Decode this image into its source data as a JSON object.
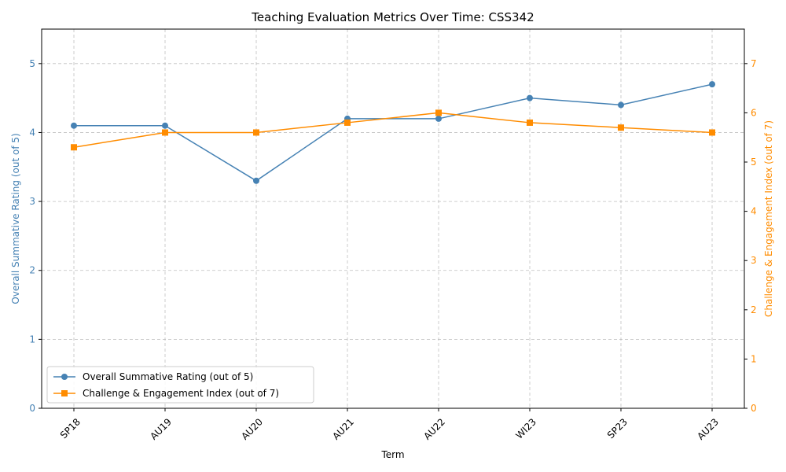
{
  "chart_data": {
    "type": "line",
    "title": "Teaching Evaluation Metrics Over Time: CSS342",
    "xlabel": "Term",
    "categories": [
      "SP18",
      "AU19",
      "AU20",
      "AU21",
      "AU22",
      "WI23",
      "SP23",
      "AU23"
    ],
    "series": [
      {
        "name": "Overall Summative Rating (out of 5)",
        "axis": "left",
        "color": "#4682b4",
        "marker": "circle",
        "values": [
          4.1,
          4.1,
          3.3,
          4.2,
          4.2,
          4.5,
          4.4,
          4.7
        ]
      },
      {
        "name": "Challenge & Engagement Index (out of 7)",
        "axis": "right",
        "color": "#ff8c00",
        "marker": "square",
        "values": [
          5.3,
          5.6,
          5.6,
          5.8,
          6.0,
          5.8,
          5.7,
          5.6
        ]
      }
    ],
    "y_left": {
      "label": "Overall Summative Rating (out of 5)",
      "lim": [
        0,
        5.5
      ],
      "ticks": [
        0,
        1,
        2,
        3,
        4,
        5
      ],
      "color": "#4682b4"
    },
    "y_right": {
      "label": "Challenge & Engagement Index (out of 7)",
      "lim": [
        0,
        7.7
      ],
      "ticks": [
        0,
        1,
        2,
        3,
        4,
        5,
        6,
        7
      ],
      "color": "#ff8c00"
    },
    "grid": true,
    "legend_position": "lower-left"
  }
}
